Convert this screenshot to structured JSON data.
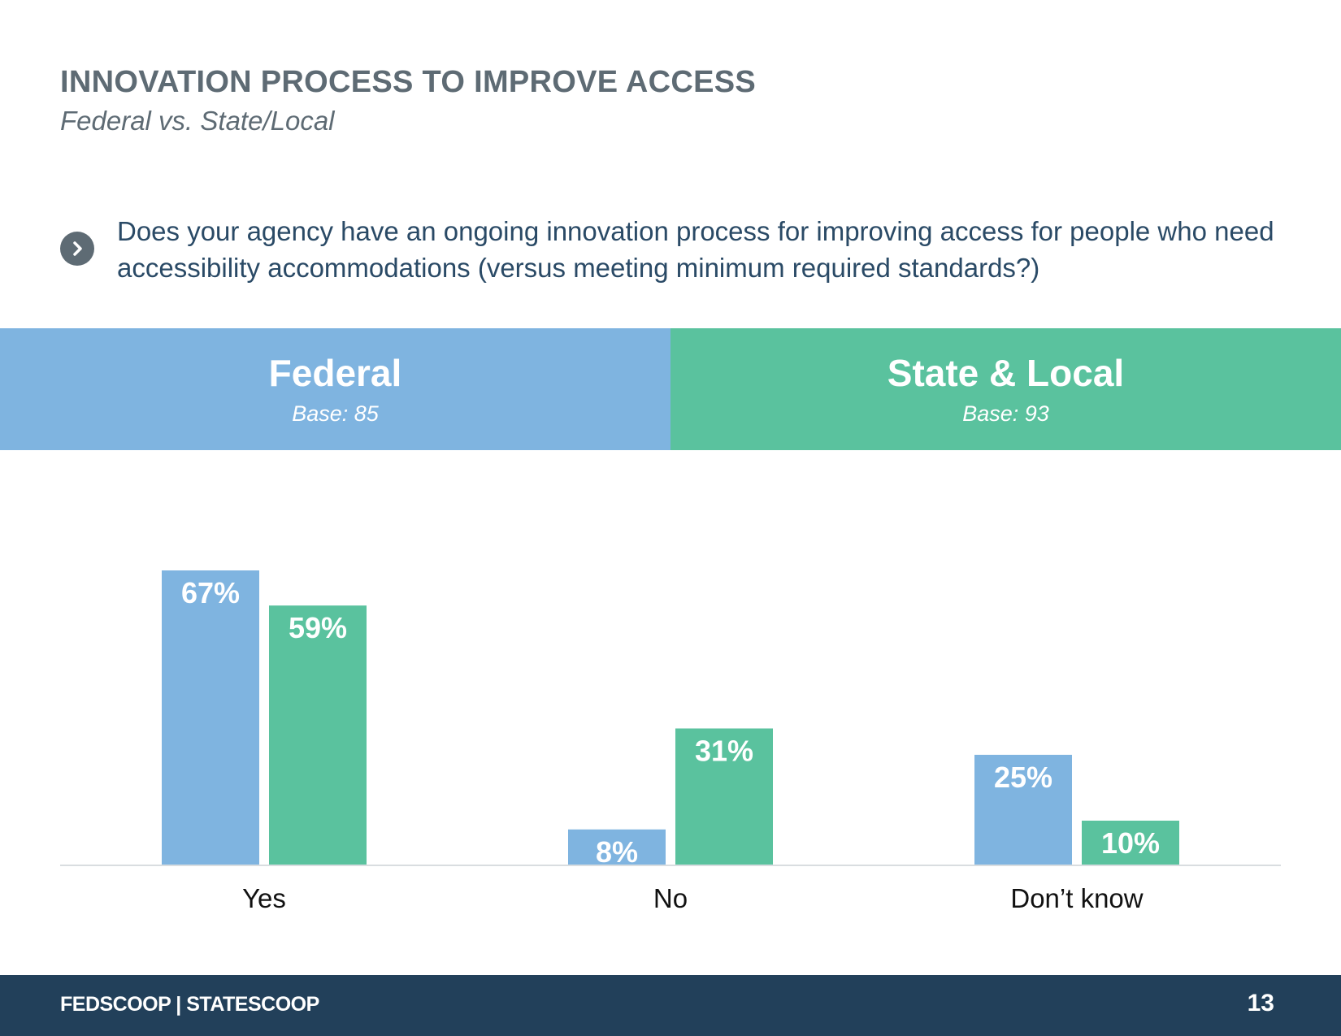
{
  "header": {
    "title": "INNOVATION PROCESS TO IMPROVE ACCESS",
    "subtitle": "Federal vs. State/Local"
  },
  "question": {
    "icon": "chevron-right-icon",
    "text": "Does your agency have an ongoing innovation process for improving access for people who need accessibility accommodations (versus meeting minimum required standards?)"
  },
  "bands": {
    "federal": {
      "title": "Federal",
      "base": "Base: 85"
    },
    "state": {
      "title": "State & Local",
      "base": "Base: 93"
    }
  },
  "chart_data": {
    "type": "bar",
    "categories": [
      "Yes",
      "No",
      "Don’t know"
    ],
    "series": [
      {
        "name": "Federal",
        "values": [
          67,
          8,
          25
        ],
        "labels": [
          "67%",
          "8%",
          "25%"
        ],
        "color": "#7fb4e0"
      },
      {
        "name": "State & Local",
        "values": [
          59,
          31,
          10
        ],
        "labels": [
          "59%",
          "31%",
          "10%"
        ],
        "color": "#5ac29e"
      }
    ],
    "ylim": [
      0,
      70
    ],
    "grid": false
  },
  "footer": {
    "brand": "FEDSCOOP | STATESCOOP",
    "page": "13"
  }
}
